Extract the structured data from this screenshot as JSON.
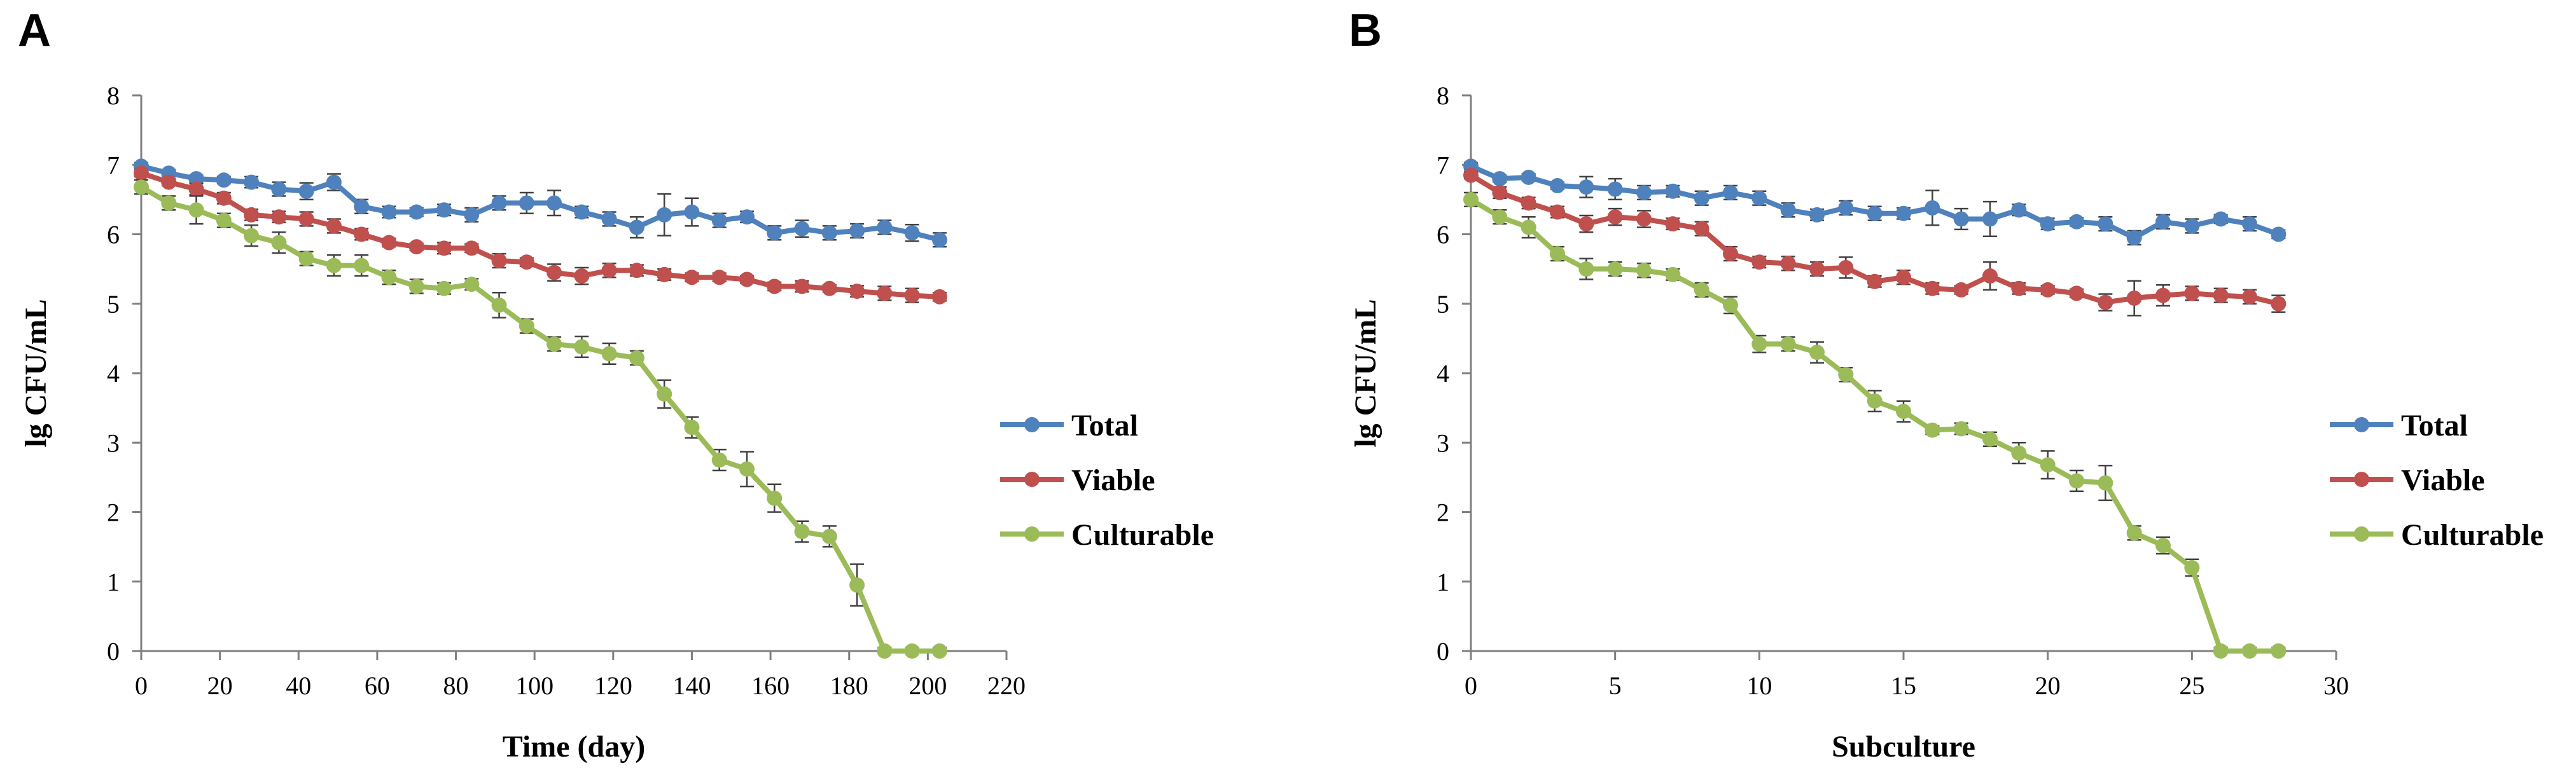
{
  "colors": {
    "Total": "#4f81bd",
    "Viable": "#c0504d",
    "Culturable": "#9bbb59",
    "axis": "#7f7f7f",
    "error": "#404040"
  },
  "chart_data": [
    {
      "panel": "A",
      "type": "line",
      "xlabel": "Time (day)",
      "ylabel": "lg CFU/mL",
      "xlim": [
        0,
        220
      ],
      "ylim": [
        0,
        8
      ],
      "xticks": [
        0,
        20,
        40,
        60,
        80,
        100,
        120,
        140,
        160,
        180,
        200,
        220
      ],
      "yticks": [
        0,
        1,
        2,
        3,
        4,
        5,
        6,
        7,
        8
      ],
      "legend": [
        "Total",
        "Viable",
        "Culturable"
      ],
      "x": [
        0,
        7,
        14,
        21,
        28,
        35,
        42,
        49,
        56,
        63,
        70,
        77,
        84,
        91,
        98,
        105,
        112,
        119,
        126,
        133,
        140,
        147,
        154,
        161,
        168,
        175,
        182,
        189,
        196,
        203
      ],
      "series": [
        {
          "name": "Total",
          "values": [
            6.98,
            6.88,
            6.8,
            6.78,
            6.75,
            6.65,
            6.62,
            6.75,
            6.4,
            6.32,
            6.32,
            6.35,
            6.28,
            6.45,
            6.45,
            6.45,
            6.32,
            6.22,
            6.1,
            6.28,
            6.32,
            6.2,
            6.25,
            6.02,
            6.08,
            6.02,
            6.05,
            6.1,
            6.02,
            5.92
          ],
          "err": [
            0.05,
            0.05,
            0.05,
            0.05,
            0.08,
            0.1,
            0.12,
            0.12,
            0.1,
            0.08,
            0.06,
            0.08,
            0.1,
            0.1,
            0.15,
            0.18,
            0.08,
            0.1,
            0.15,
            0.3,
            0.2,
            0.1,
            0.08,
            0.1,
            0.12,
            0.1,
            0.1,
            0.1,
            0.12,
            0.1
          ]
        },
        {
          "name": "Viable",
          "values": [
            6.88,
            6.75,
            6.65,
            6.52,
            6.28,
            6.25,
            6.22,
            6.12,
            6.0,
            5.88,
            5.82,
            5.8,
            5.8,
            5.62,
            5.6,
            5.45,
            5.4,
            5.48,
            5.48,
            5.42,
            5.38,
            5.38,
            5.35,
            5.25,
            5.25,
            5.22,
            5.18,
            5.15,
            5.12,
            5.1
          ],
          "err": [
            0.05,
            0.05,
            0.08,
            0.08,
            0.08,
            0.08,
            0.1,
            0.1,
            0.08,
            0.06,
            0.05,
            0.08,
            0.06,
            0.1,
            0.06,
            0.12,
            0.12,
            0.1,
            0.08,
            0.08,
            0.06,
            0.06,
            0.05,
            0.06,
            0.08,
            0.05,
            0.08,
            0.1,
            0.1,
            0.06
          ]
        },
        {
          "name": "Culturable",
          "values": [
            6.68,
            6.45,
            6.35,
            6.2,
            5.98,
            5.88,
            5.65,
            5.55,
            5.55,
            5.38,
            5.25,
            5.22,
            5.28,
            4.98,
            4.68,
            4.42,
            4.38,
            4.28,
            4.22,
            3.7,
            3.22,
            2.75,
            2.62,
            2.2,
            1.72,
            1.65,
            0.95,
            0.0,
            0.0,
            0.0
          ],
          "err": [
            0.1,
            0.1,
            0.2,
            0.1,
            0.15,
            0.15,
            0.1,
            0.15,
            0.15,
            0.1,
            0.1,
            0.08,
            0.08,
            0.18,
            0.1,
            0.1,
            0.15,
            0.15,
            0.1,
            0.2,
            0.15,
            0.15,
            0.25,
            0.2,
            0.15,
            0.15,
            0.3,
            0.05,
            0.05,
            0.05
          ]
        }
      ]
    },
    {
      "panel": "B",
      "type": "line",
      "xlabel": "Subculture",
      "ylabel": "lg CFU/mL",
      "xlim": [
        0,
        30
      ],
      "ylim": [
        0,
        8
      ],
      "xticks": [
        0,
        5,
        10,
        15,
        20,
        25,
        30
      ],
      "yticks": [
        0,
        1,
        2,
        3,
        4,
        5,
        6,
        7,
        8
      ],
      "legend": [
        "Total",
        "Viable",
        "Culturable"
      ],
      "x": [
        0,
        1,
        2,
        3,
        4,
        5,
        6,
        7,
        8,
        9,
        10,
        11,
        12,
        13,
        14,
        15,
        16,
        17,
        18,
        19,
        20,
        21,
        22,
        23,
        24,
        25,
        26,
        27,
        28
      ],
      "series": [
        {
          "name": "Total",
          "values": [
            6.98,
            6.8,
            6.82,
            6.7,
            6.68,
            6.65,
            6.6,
            6.62,
            6.52,
            6.6,
            6.52,
            6.35,
            6.28,
            6.38,
            6.3,
            6.3,
            6.38,
            6.22,
            6.22,
            6.35,
            6.15,
            6.18,
            6.15,
            5.95,
            6.18,
            6.12,
            6.22,
            6.15,
            6.0
          ],
          "err": [
            0.05,
            0.05,
            0.05,
            0.05,
            0.15,
            0.15,
            0.1,
            0.08,
            0.1,
            0.1,
            0.1,
            0.1,
            0.08,
            0.1,
            0.1,
            0.08,
            0.25,
            0.15,
            0.25,
            0.08,
            0.08,
            0.06,
            0.1,
            0.1,
            0.1,
            0.1,
            0.06,
            0.1,
            0.06
          ]
        },
        {
          "name": "Viable",
          "values": [
            6.85,
            6.6,
            6.45,
            6.32,
            6.15,
            6.25,
            6.22,
            6.15,
            6.08,
            5.72,
            5.6,
            5.58,
            5.5,
            5.52,
            5.32,
            5.38,
            5.22,
            5.2,
            5.4,
            5.22,
            5.2,
            5.15,
            5.02,
            5.08,
            5.12,
            5.15,
            5.12,
            5.1,
            5.0
          ],
          "err": [
            0.05,
            0.08,
            0.08,
            0.08,
            0.12,
            0.12,
            0.12,
            0.08,
            0.1,
            0.1,
            0.08,
            0.1,
            0.1,
            0.15,
            0.08,
            0.1,
            0.08,
            0.06,
            0.2,
            0.08,
            0.06,
            0.06,
            0.12,
            0.25,
            0.15,
            0.1,
            0.1,
            0.1,
            0.12
          ]
        },
        {
          "name": "Culturable",
          "values": [
            6.5,
            6.25,
            6.1,
            5.72,
            5.5,
            5.5,
            5.48,
            5.42,
            5.2,
            4.98,
            4.42,
            4.42,
            4.3,
            3.98,
            3.6,
            3.45,
            3.18,
            3.2,
            3.05,
            2.85,
            2.68,
            2.45,
            2.42,
            1.7,
            1.52,
            1.2,
            0.0,
            0.0,
            0.0
          ],
          "err": [
            0.1,
            0.1,
            0.15,
            0.1,
            0.15,
            0.1,
            0.1,
            0.08,
            0.1,
            0.12,
            0.12,
            0.1,
            0.15,
            0.1,
            0.15,
            0.15,
            0.06,
            0.08,
            0.1,
            0.15,
            0.2,
            0.15,
            0.25,
            0.1,
            0.12,
            0.12,
            0.05,
            0.05,
            0.05
          ]
        }
      ]
    }
  ]
}
